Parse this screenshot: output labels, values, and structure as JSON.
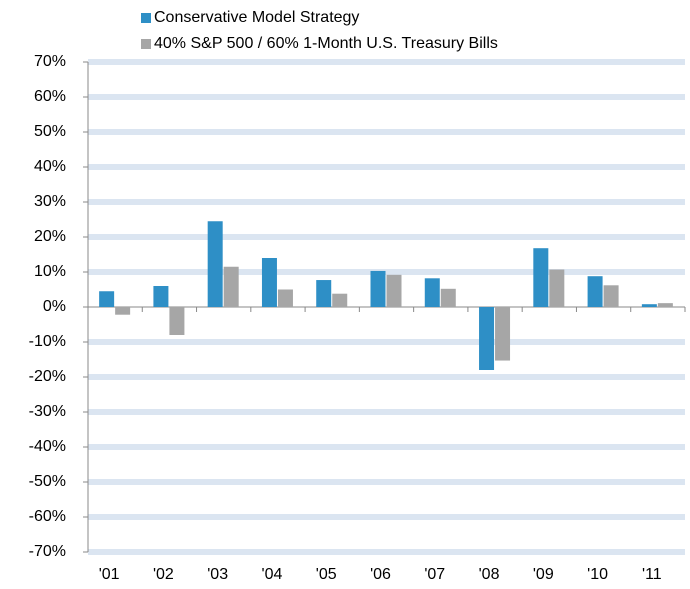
{
  "chart_data": {
    "type": "bar",
    "categories": [
      "'01",
      "'02",
      "'03",
      "'04",
      "'05",
      "'06",
      "'07",
      "'08",
      "'09",
      "'10",
      "'11"
    ],
    "series": [
      {
        "name": "Conservative Model Strategy",
        "color": "#2e8fc6",
        "values": [
          4.5,
          6,
          24.5,
          14,
          7.7,
          10.3,
          8.2,
          -18,
          16.8,
          8.8,
          0.8
        ]
      },
      {
        "name": "40% S&P 500 / 60% 1-Month U.S. Treasury Bills",
        "color": "#a6a6a6",
        "values": [
          -2.2,
          -8,
          11.5,
          5,
          3.8,
          9.2,
          5.2,
          -15.3,
          10.7,
          6.2,
          1.1
        ]
      }
    ],
    "ylim": [
      -70,
      70
    ],
    "yticks": [
      {
        "value": -70,
        "label": "-70%"
      },
      {
        "value": -60,
        "label": "-60%"
      },
      {
        "value": -50,
        "label": "-50%"
      },
      {
        "value": -40,
        "label": "-40%"
      },
      {
        "value": -30,
        "label": "-30%"
      },
      {
        "value": -20,
        "label": "-20%"
      },
      {
        "value": -10,
        "label": "-10%"
      },
      {
        "value": 0,
        "label": "0%"
      },
      {
        "value": 10,
        "label": "10%"
      },
      {
        "value": 20,
        "label": "20%"
      },
      {
        "value": 30,
        "label": "30%"
      },
      {
        "value": 40,
        "label": "40%"
      },
      {
        "value": 50,
        "label": "50%"
      },
      {
        "value": 60,
        "label": "60%"
      },
      {
        "value": 70,
        "label": "70%"
      }
    ],
    "grid": true,
    "legend": "top"
  }
}
